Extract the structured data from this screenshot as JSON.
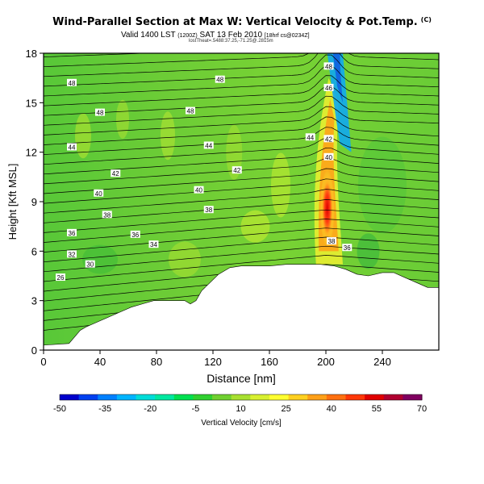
{
  "header": {
    "title": "Wind-Parallel Section at Max W: Vertical Velocity & Pot.Temp.",
    "title_mark": "(C)",
    "subtitle_main": "Valid 1400 LST",
    "subtitle_small1": "(1200Z)",
    "subtitle_date": "SAT 13 Feb 2010",
    "subtitle_small2": "[18hrf cs@0234Z]",
    "credit": "lostTheat=.5488:37.25,-71.25@.2815m"
  },
  "chart_data": {
    "type": "heatmap",
    "title": "Wind-Parallel Section at Max W: Vertical Velocity & Pot.Temp.",
    "xlabel": "Distance [nm]",
    "ylabel": "Height [Kft MSL]",
    "xlim": [
      0,
      280
    ],
    "ylim": [
      0,
      18
    ],
    "xticks": [
      0,
      40,
      80,
      120,
      160,
      200,
      240
    ],
    "yticks": [
      0,
      3,
      6,
      9,
      12,
      15,
      18
    ],
    "colorbar": {
      "label": "Vertical Velocity [cm/s]",
      "ticks": [
        -50,
        -35,
        -20,
        -5,
        10,
        25,
        40,
        55,
        70
      ],
      "colors": [
        "#0000cc",
        "#0040f0",
        "#0080ff",
        "#00b4ff",
        "#00dcd8",
        "#00e8a0",
        "#00e050",
        "#30d030",
        "#70d030",
        "#a8e030",
        "#d8f030",
        "#ffff30",
        "#ffd020",
        "#ffa018",
        "#ff7010",
        "#ff3808",
        "#e00000",
        "#b00030",
        "#800060"
      ]
    },
    "contour_labels": [
      {
        "x": 20,
        "y": 16.2,
        "label": "48"
      },
      {
        "x": 125,
        "y": 16.4,
        "label": "48"
      },
      {
        "x": 202,
        "y": 17.2,
        "label": "48"
      },
      {
        "x": 40,
        "y": 14.4,
        "label": "48"
      },
      {
        "x": 104,
        "y": 14.5,
        "label": "48"
      },
      {
        "x": 202,
        "y": 15.9,
        "label": "46"
      },
      {
        "x": 20,
        "y": 12.3,
        "label": "44"
      },
      {
        "x": 117,
        "y": 12.4,
        "label": "44"
      },
      {
        "x": 189,
        "y": 12.9,
        "label": "44"
      },
      {
        "x": 202,
        "y": 12.8,
        "label": "42"
      },
      {
        "x": 51,
        "y": 10.7,
        "label": "42"
      },
      {
        "x": 137,
        "y": 10.9,
        "label": "42"
      },
      {
        "x": 202,
        "y": 11.7,
        "label": "40"
      },
      {
        "x": 39,
        "y": 9.5,
        "label": "40"
      },
      {
        "x": 110,
        "y": 9.7,
        "label": "40"
      },
      {
        "x": 45,
        "y": 8.2,
        "label": "38"
      },
      {
        "x": 117,
        "y": 8.5,
        "label": "38"
      },
      {
        "x": 20,
        "y": 7.1,
        "label": "36"
      },
      {
        "x": 65,
        "y": 7.0,
        "label": "36"
      },
      {
        "x": 78,
        "y": 6.4,
        "label": "34"
      },
      {
        "x": 204,
        "y": 6.6,
        "label": "38"
      },
      {
        "x": 215,
        "y": 6.2,
        "label": "36"
      },
      {
        "x": 20,
        "y": 5.8,
        "label": "32"
      },
      {
        "x": 33,
        "y": 5.2,
        "label": "30"
      },
      {
        "x": 12,
        "y": 4.4,
        "label": "26"
      }
    ],
    "series": [
      {
        "type": "terrain",
        "x": [
          0,
          18,
          22,
          26,
          30,
          38,
          46,
          54,
          62,
          70,
          78,
          86,
          94,
          100,
          104,
          108,
          112,
          118,
          124,
          132,
          140,
          150,
          160,
          172,
          184,
          196,
          206,
          214,
          222,
          230,
          240,
          248,
          256,
          264,
          272,
          280
        ],
        "y": [
          0.3,
          0.4,
          0.8,
          1.2,
          1.4,
          1.7,
          2.0,
          2.3,
          2.6,
          2.8,
          3.0,
          3.0,
          3.0,
          3.0,
          2.8,
          3.0,
          3.6,
          4.1,
          4.6,
          5.0,
          5.1,
          5.1,
          5.1,
          5.2,
          5.2,
          5.2,
          5.1,
          4.9,
          4.6,
          4.5,
          4.7,
          4.7,
          4.4,
          4.1,
          3.8,
          3.8
        ]
      }
    ]
  }
}
